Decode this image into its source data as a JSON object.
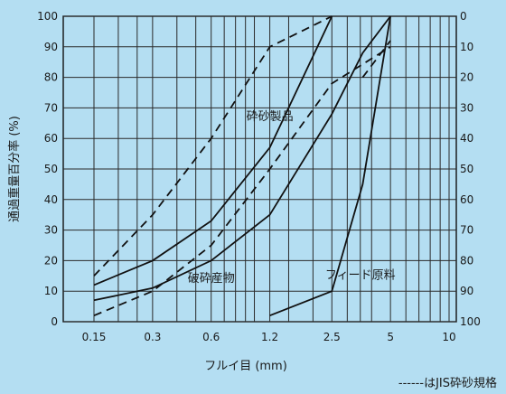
{
  "chart_data": {
    "type": "line",
    "xlabel": "フルイ目 (mm)",
    "ylabel_left": "通過重量百分率 (%)",
    "x_ticks": [
      "0.15",
      "0.3",
      "0.6",
      "1.2",
      "2.5",
      "5",
      "10"
    ],
    "y_ticks_left": [
      "0",
      "10",
      "20",
      "30",
      "40",
      "50",
      "60",
      "70",
      "80",
      "90",
      "100"
    ],
    "y_ticks_right": [
      "100",
      "90",
      "80",
      "70",
      "60",
      "50",
      "40",
      "30",
      "20",
      "10",
      "0"
    ],
    "ylim": [
      0,
      100
    ],
    "grid": true,
    "annotations": [
      {
        "text": "砕砂製品",
        "x": 1.2,
        "y": 66
      },
      {
        "text": "破砕産物",
        "x": 0.6,
        "y": 13
      },
      {
        "text": "フィード原料",
        "x": 3.5,
        "y": 14
      }
    ],
    "legend_note": "------はJIS砕砂規格",
    "series": [
      {
        "style": "dashed",
        "points": [
          [
            0.15,
            15
          ],
          [
            0.3,
            35
          ],
          [
            0.6,
            60
          ],
          [
            1.2,
            90
          ],
          [
            2.5,
            100
          ]
        ]
      },
      {
        "style": "solid",
        "points": [
          [
            0.15,
            12
          ],
          [
            0.3,
            20
          ],
          [
            0.6,
            33
          ],
          [
            1.2,
            57
          ],
          [
            2.5,
            100
          ]
        ]
      },
      {
        "style": "dashed",
        "points": [
          [
            0.15,
            2
          ],
          [
            0.3,
            10
          ],
          [
            0.6,
            25
          ],
          [
            1.2,
            50
          ],
          [
            2.5,
            78
          ],
          [
            5,
            90
          ]
        ]
      },
      {
        "style": "solid",
        "points": [
          [
            0.15,
            7
          ],
          [
            0.3,
            11
          ],
          [
            0.6,
            20
          ],
          [
            1.2,
            35
          ],
          [
            2.5,
            68
          ],
          [
            3.6,
            88
          ],
          [
            5,
            100
          ]
        ]
      },
      {
        "style": "solid",
        "points": [
          [
            1.2,
            2
          ],
          [
            2.5,
            10
          ],
          [
            3.6,
            45
          ],
          [
            5,
            100
          ]
        ]
      },
      {
        "style": "dashed",
        "points": [
          [
            3.6,
            80
          ],
          [
            5,
            92
          ]
        ]
      }
    ]
  }
}
